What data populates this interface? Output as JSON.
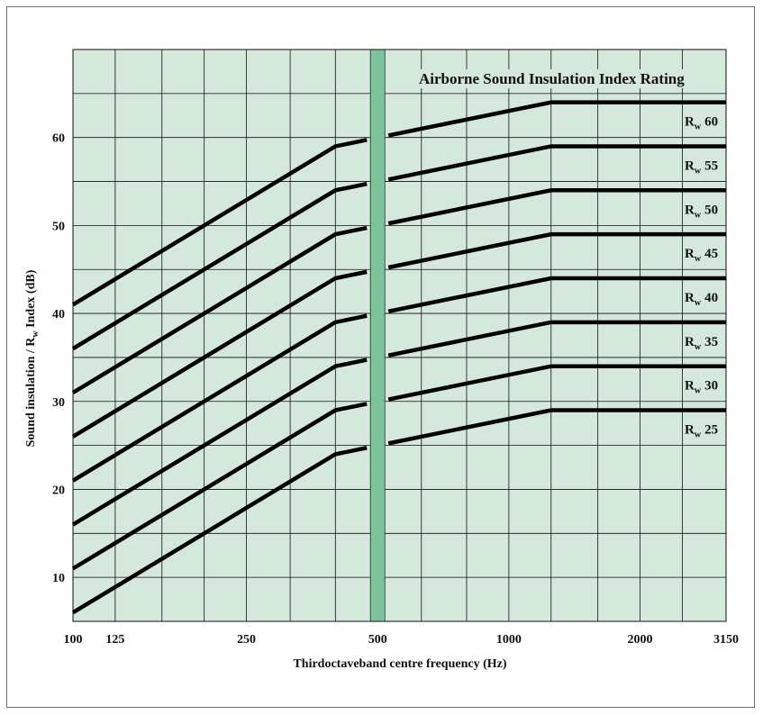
{
  "chart_data": {
    "type": "line",
    "title": "Airborne Sound Insulation Index Rating",
    "xlabel": "Thirdoctaveband centre frequency (Hz)",
    "ylabel": {
      "prefix": "Sound insulation / R",
      "sub": "w",
      "suffix": " Index (dB)"
    },
    "x_scale": "log",
    "xlim": [
      100,
      3150
    ],
    "ylim": [
      5,
      70
    ],
    "x_bands": [
      100,
      125,
      160,
      200,
      250,
      315,
      400,
      500,
      630,
      800,
      1000,
      1250,
      1600,
      2000,
      2500,
      3150
    ],
    "x_tick_labels": [
      "100",
      "125",
      "250",
      "500",
      "1000",
      "2000",
      "3150"
    ],
    "y_ticks": [
      10,
      20,
      30,
      40,
      50,
      60
    ],
    "grid": true,
    "highlight_band_hz": 500,
    "series": [
      {
        "name_prefix": "R",
        "name_sub": "w",
        "name_value": "60",
        "x": [
          100,
          400,
          1250,
          3150
        ],
        "y": [
          41,
          59,
          64,
          64
        ]
      },
      {
        "name_prefix": "R",
        "name_sub": "w",
        "name_value": "55",
        "x": [
          100,
          400,
          1250,
          3150
        ],
        "y": [
          36,
          54,
          59,
          59
        ]
      },
      {
        "name_prefix": "R",
        "name_sub": "w",
        "name_value": "50",
        "x": [
          100,
          400,
          1250,
          3150
        ],
        "y": [
          31,
          49,
          54,
          54
        ]
      },
      {
        "name_prefix": "R",
        "name_sub": "w",
        "name_value": "45",
        "x": [
          100,
          400,
          1250,
          3150
        ],
        "y": [
          26,
          44,
          49,
          49
        ]
      },
      {
        "name_prefix": "R",
        "name_sub": "w",
        "name_value": "40",
        "x": [
          100,
          400,
          1250,
          3150
        ],
        "y": [
          21,
          39,
          44,
          44
        ]
      },
      {
        "name_prefix": "R",
        "name_sub": "w",
        "name_value": "35",
        "x": [
          100,
          400,
          1250,
          3150
        ],
        "y": [
          16,
          34,
          39,
          39
        ]
      },
      {
        "name_prefix": "R",
        "name_sub": "w",
        "name_value": "30",
        "x": [
          100,
          400,
          1250,
          3150
        ],
        "y": [
          11,
          29,
          34,
          34
        ]
      },
      {
        "name_prefix": "R",
        "name_sub": "w",
        "name_value": "25",
        "x": [
          100,
          400,
          1250,
          3150
        ],
        "y": [
          6,
          24,
          29,
          29
        ]
      }
    ],
    "colors": {
      "plot_background": "#d4e8dc",
      "grid": "#111111",
      "lines": "#000000",
      "highlight_band": "#7cc49a"
    }
  }
}
